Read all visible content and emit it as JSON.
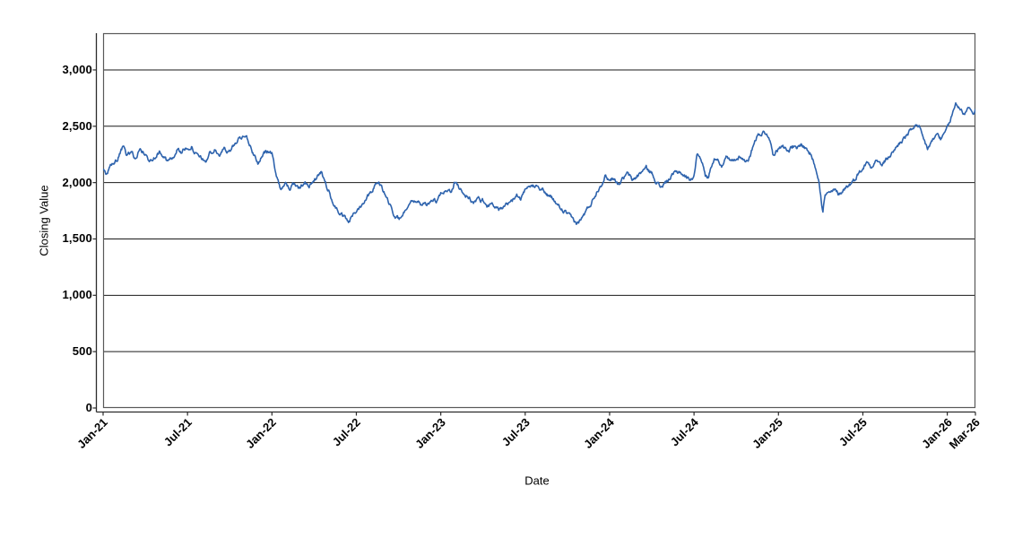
{
  "chart_data": {
    "type": "line",
    "title": "",
    "xlabel": "Date",
    "ylabel": "Closing Value",
    "x_unit": "months since Jan-2021",
    "xlim_months": [
      0,
      62
    ],
    "ylim": [
      0,
      3326
    ],
    "grid": "horizontal-only",
    "legend": "none",
    "y_ticks": [
      {
        "value": 0,
        "label": "0"
      },
      {
        "value": 500,
        "label": "500"
      },
      {
        "value": 1000,
        "label": "1,000"
      },
      {
        "value": 1500,
        "label": "1,500"
      },
      {
        "value": 2000,
        "label": "2,000"
      },
      {
        "value": 2500,
        "label": "2,500"
      },
      {
        "value": 3000,
        "label": "3,000"
      }
    ],
    "x_ticks": [
      {
        "month": 0,
        "label": "Jan-21"
      },
      {
        "month": 6,
        "label": "Jul-21"
      },
      {
        "month": 12,
        "label": "Jan-22"
      },
      {
        "month": 18,
        "label": "Jul-22"
      },
      {
        "month": 24,
        "label": "Jan-23"
      },
      {
        "month": 30,
        "label": "Jul-23"
      },
      {
        "month": 36,
        "label": "Jan-24"
      },
      {
        "month": 42,
        "label": "Jul-24"
      },
      {
        "month": 48,
        "label": "Jan-25"
      },
      {
        "month": 54,
        "label": "Jul-25"
      },
      {
        "month": 60,
        "label": "Jan-26"
      },
      {
        "month": 62,
        "label": "Mar-26"
      }
    ],
    "series": [
      {
        "name": "Closing Value",
        "color": "#2e63ad",
        "daily_volatility_approx": 30,
        "points": [
          [
            0,
            2110
          ],
          [
            0.3,
            2060
          ],
          [
            0.6,
            2160
          ],
          [
            1,
            2200
          ],
          [
            1.4,
            2310
          ],
          [
            1.7,
            2240
          ],
          [
            2,
            2280
          ],
          [
            2.3,
            2200
          ],
          [
            2.6,
            2300
          ],
          [
            3,
            2250
          ],
          [
            3.3,
            2180
          ],
          [
            3.6,
            2230
          ],
          [
            4,
            2280
          ],
          [
            4.3,
            2230
          ],
          [
            4.6,
            2180
          ],
          [
            5,
            2230
          ],
          [
            5.3,
            2300
          ],
          [
            5.6,
            2270
          ],
          [
            6,
            2310
          ],
          [
            6.3,
            2330
          ],
          [
            6.6,
            2250
          ],
          [
            7,
            2210
          ],
          [
            7.3,
            2190
          ],
          [
            7.6,
            2260
          ],
          [
            8,
            2290
          ],
          [
            8.3,
            2240
          ],
          [
            8.6,
            2300
          ],
          [
            9,
            2280
          ],
          [
            9.3,
            2330
          ],
          [
            9.6,
            2390
          ],
          [
            10.1,
            2430
          ],
          [
            10.4,
            2340
          ],
          [
            10.7,
            2250
          ],
          [
            11,
            2180
          ],
          [
            11.4,
            2250
          ],
          [
            11.7,
            2280
          ],
          [
            12,
            2250
          ],
          [
            12.3,
            2080
          ],
          [
            12.6,
            1950
          ],
          [
            13,
            1990
          ],
          [
            13.3,
            1940
          ],
          [
            13.6,
            2000
          ],
          [
            14,
            1960
          ],
          [
            14.3,
            2010
          ],
          [
            14.6,
            1940
          ],
          [
            15,
            2020
          ],
          [
            15.5,
            2090
          ],
          [
            16,
            1940
          ],
          [
            16.4,
            1800
          ],
          [
            16.8,
            1730
          ],
          [
            17.2,
            1680
          ],
          [
            17.5,
            1650
          ],
          [
            17.8,
            1720
          ],
          [
            18.2,
            1780
          ],
          [
            18.6,
            1850
          ],
          [
            19,
            1920
          ],
          [
            19.5,
            2010
          ],
          [
            19.8,
            1950
          ],
          [
            20.2,
            1860
          ],
          [
            20.5,
            1760
          ],
          [
            20.8,
            1700
          ],
          [
            21.2,
            1670
          ],
          [
            21.5,
            1780
          ],
          [
            22,
            1860
          ],
          [
            22.4,
            1830
          ],
          [
            22.7,
            1790
          ],
          [
            23,
            1800
          ],
          [
            23.4,
            1860
          ],
          [
            23.7,
            1830
          ],
          [
            24,
            1890
          ],
          [
            24.4,
            1950
          ],
          [
            24.7,
            1920
          ],
          [
            25,
            2000
          ],
          [
            25.3,
            1960
          ],
          [
            25.6,
            1900
          ],
          [
            26,
            1870
          ],
          [
            26.3,
            1820
          ],
          [
            26.6,
            1850
          ],
          [
            27,
            1840
          ],
          [
            27.3,
            1790
          ],
          [
            27.6,
            1820
          ],
          [
            28,
            1770
          ],
          [
            28.3,
            1750
          ],
          [
            28.6,
            1790
          ],
          [
            29,
            1830
          ],
          [
            29.4,
            1880
          ],
          [
            29.7,
            1850
          ],
          [
            30,
            1920
          ],
          [
            30.4,
            1960
          ],
          [
            30.8,
            1990
          ],
          [
            31,
            1970
          ],
          [
            31.3,
            1930
          ],
          [
            31.6,
            1890
          ],
          [
            32,
            1850
          ],
          [
            32.3,
            1800
          ],
          [
            32.6,
            1760
          ],
          [
            33,
            1720
          ],
          [
            33.3,
            1680
          ],
          [
            33.7,
            1635
          ],
          [
            34,
            1680
          ],
          [
            34.4,
            1760
          ],
          [
            34.7,
            1820
          ],
          [
            35,
            1900
          ],
          [
            35.4,
            1990
          ],
          [
            35.7,
            2060
          ],
          [
            36,
            2020
          ],
          [
            36.3,
            2050
          ],
          [
            36.6,
            1990
          ],
          [
            37,
            2040
          ],
          [
            37.3,
            2080
          ],
          [
            37.6,
            2020
          ],
          [
            38,
            2060
          ],
          [
            38.3,
            2100
          ],
          [
            38.6,
            2130
          ],
          [
            39,
            2080
          ],
          [
            39.3,
            2020
          ],
          [
            39.6,
            1960
          ],
          [
            40,
            2000
          ],
          [
            40.3,
            2040
          ],
          [
            40.6,
            2080
          ],
          [
            41,
            2100
          ],
          [
            41.3,
            2060
          ],
          [
            41.6,
            2030
          ],
          [
            42,
            2050
          ],
          [
            42.2,
            2260
          ],
          [
            42.5,
            2230
          ],
          [
            42.8,
            2060
          ],
          [
            43,
            2040
          ],
          [
            43.3,
            2180
          ],
          [
            43.6,
            2230
          ],
          [
            44,
            2150
          ],
          [
            44.3,
            2220
          ],
          [
            44.6,
            2180
          ],
          [
            45,
            2200
          ],
          [
            45.3,
            2240
          ],
          [
            45.6,
            2190
          ],
          [
            46,
            2230
          ],
          [
            46.3,
            2380
          ],
          [
            46.6,
            2430
          ],
          [
            47,
            2450
          ],
          [
            47.3,
            2420
          ],
          [
            47.6,
            2260
          ],
          [
            48,
            2300
          ],
          [
            48.3,
            2350
          ],
          [
            48.6,
            2280
          ],
          [
            49,
            2320
          ],
          [
            49.3,
            2290
          ],
          [
            49.6,
            2340
          ],
          [
            50,
            2300
          ],
          [
            50.3,
            2250
          ],
          [
            50.6,
            2150
          ],
          [
            50.9,
            2020
          ],
          [
            51.05,
            1850
          ],
          [
            51.15,
            1730
          ],
          [
            51.3,
            1890
          ],
          [
            51.6,
            1900
          ],
          [
            52,
            1930
          ],
          [
            52.3,
            1890
          ],
          [
            52.6,
            1940
          ],
          [
            53,
            1980
          ],
          [
            53.3,
            2010
          ],
          [
            53.6,
            2070
          ],
          [
            54,
            2130
          ],
          [
            54.3,
            2180
          ],
          [
            54.6,
            2150
          ],
          [
            55,
            2210
          ],
          [
            55.3,
            2150
          ],
          [
            55.6,
            2190
          ],
          [
            56,
            2250
          ],
          [
            56.3,
            2300
          ],
          [
            56.6,
            2350
          ],
          [
            57,
            2400
          ],
          [
            57.4,
            2460
          ],
          [
            57.7,
            2510
          ],
          [
            58,
            2480
          ],
          [
            58.3,
            2380
          ],
          [
            58.6,
            2300
          ],
          [
            59,
            2380
          ],
          [
            59.3,
            2430
          ],
          [
            59.6,
            2380
          ],
          [
            60,
            2480
          ],
          [
            60.3,
            2580
          ],
          [
            60.6,
            2700
          ],
          [
            61,
            2650
          ],
          [
            61.2,
            2600
          ],
          [
            61.5,
            2690
          ],
          [
            61.8,
            2610
          ],
          [
            62,
            2640
          ]
        ]
      }
    ],
    "style": {
      "background": "#ffffff",
      "grid_color": "#1a1a1a",
      "plot_border_color": "#595959",
      "axis_line_color": "#2b2b2b",
      "text_color": "#000000"
    }
  }
}
